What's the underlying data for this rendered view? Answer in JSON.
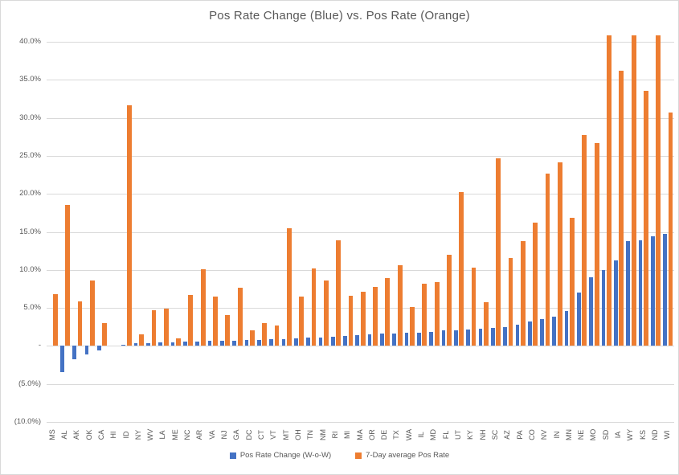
{
  "title": "Pos Rate Change (Blue) vs. Pos Rate (Orange)",
  "colors": {
    "blue": "#4472C4",
    "orange": "#ED7D31",
    "gridline": "#D9D9D9",
    "axis_text": "#595959",
    "title_text": "#595959",
    "border": "#D9D9D9"
  },
  "legend": [
    {
      "label": "Pos Rate Change (W-o-W)",
      "color_key": "blue"
    },
    {
      "label": "7-Day average Pos Rate",
      "color_key": "orange"
    }
  ],
  "y_axis": {
    "ticks": [
      {
        "value": 40,
        "label": "40.0%"
      },
      {
        "value": 35,
        "label": "35.0%"
      },
      {
        "value": 30,
        "label": "30.0%"
      },
      {
        "value": 25,
        "label": "25.0%"
      },
      {
        "value": 20,
        "label": "20.0%"
      },
      {
        "value": 15,
        "label": "15.0%"
      },
      {
        "value": 10,
        "label": "10.0%"
      },
      {
        "value": 5,
        "label": "5.0%"
      },
      {
        "value": 0,
        "label": "-"
      },
      {
        "value": -5,
        "label": "(5.0%)"
      },
      {
        "value": -10,
        "label": "(10.0%)"
      }
    ]
  },
  "chart_data": {
    "type": "bar",
    "title": "Pos Rate Change (Blue) vs. Pos Rate (Orange)",
    "xlabel": "",
    "ylabel": "",
    "ylim": [
      -10,
      40
    ],
    "grid": true,
    "legend_position": "bottom",
    "units": "percent",
    "categories": [
      "MS",
      "AL",
      "AK",
      "OK",
      "CA",
      "HI",
      "ID",
      "NY",
      "WV",
      "LA",
      "ME",
      "NC",
      "AR",
      "VA",
      "NJ",
      "GA",
      "DC",
      "CT",
      "VT",
      "MT",
      "OH",
      "TN",
      "NM",
      "RI",
      "MI",
      "MA",
      "OR",
      "DE",
      "TX",
      "WA",
      "IL",
      "MD",
      "FL",
      "UT",
      "KY",
      "NH",
      "SC",
      "AZ",
      "PA",
      "CO",
      "NV",
      "IN",
      "MN",
      "NE",
      "MO",
      "SD",
      "IA",
      "WY",
      "KS",
      "ND",
      "WI"
    ],
    "series": [
      {
        "name": "Pos Rate Change (W-o-W)",
        "color": "#4472C4",
        "values": [
          0,
          -3.4,
          -1.8,
          -1.1,
          -0.6,
          0,
          0.2,
          0.35,
          0.4,
          0.45,
          0.5,
          0.55,
          0.6,
          0.65,
          0.7,
          0.7,
          0.75,
          0.8,
          0.85,
          0.9,
          1.0,
          1.05,
          1.1,
          1.2,
          1.35,
          1.45,
          1.5,
          1.6,
          1.65,
          1.7,
          1.75,
          1.8,
          2.0,
          2.05,
          2.2,
          2.3,
          2.35,
          2.5,
          2.8,
          3.2,
          3.5,
          3.9,
          4.6,
          7.0,
          9.0,
          10.0,
          11.3,
          13.8,
          13.9,
          14.4,
          14.7
        ]
      },
      {
        "name": "7-Day average Pos Rate",
        "color": "#ED7D31",
        "values": [
          6.8,
          18.5,
          5.9,
          8.6,
          3.0,
          0,
          31.7,
          1.5,
          4.7,
          4.9,
          1.0,
          6.7,
          10.1,
          6.5,
          4.1,
          7.7,
          2.0,
          3.0,
          2.7,
          15.5,
          6.5,
          10.2,
          8.6,
          13.9,
          6.6,
          7.1,
          7.8,
          8.9,
          10.6,
          5.1,
          8.2,
          8.4,
          12.0,
          20.2,
          10.3,
          5.7,
          24.7,
          11.6,
          13.8,
          16.2,
          22.7,
          24.1,
          16.8,
          27.7,
          26.7,
          40.8,
          36.2,
          40.8,
          33.6,
          40.8,
          30.7
        ]
      }
    ],
    "clipped_at_axis_max": [
      "SD",
      "WY",
      "ND"
    ]
  }
}
